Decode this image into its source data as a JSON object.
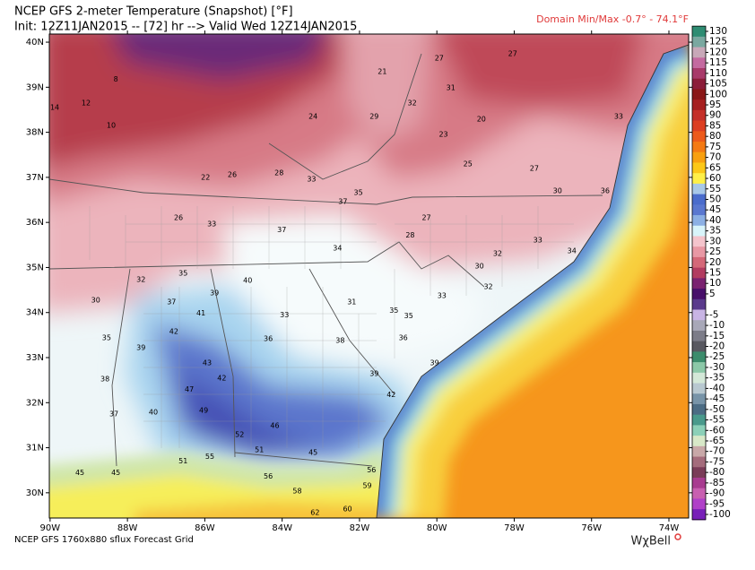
{
  "map": {
    "title": "NCEP GFS 2-meter Temperature (Snapshot) [°F]",
    "subtitle": "Init: 12Z11JAN2015 -- [72] hr --> Valid Wed 12Z14JAN2015",
    "domain_minmax": "Domain Min/Max  -0.7° -  74.1°F",
    "footer": "NCEP GFS 1760x880 sflux Forecast Grid",
    "logo": "WχBell",
    "xlim": [
      -90.02,
      -73.49
    ],
    "ylim": [
      29.44,
      40.18
    ],
    "xticks": [
      {
        "value": -90,
        "label": "90W"
      },
      {
        "value": -88,
        "label": "88W"
      },
      {
        "value": -86,
        "label": "86W"
      },
      {
        "value": -84,
        "label": "84W"
      },
      {
        "value": -82,
        "label": "82W"
      },
      {
        "value": -80,
        "label": "80W"
      },
      {
        "value": -78,
        "label": "78W"
      },
      {
        "value": -76,
        "label": "76W"
      },
      {
        "value": -74,
        "label": "74W"
      }
    ],
    "yticks": [
      {
        "value": 30,
        "label": "30N"
      },
      {
        "value": 31,
        "label": "31N"
      },
      {
        "value": 32,
        "label": "32N"
      },
      {
        "value": 33,
        "label": "33N"
      },
      {
        "value": 34,
        "label": "34N"
      },
      {
        "value": 35,
        "label": "35N"
      },
      {
        "value": 36,
        "label": "36N"
      },
      {
        "value": 37,
        "label": "37N"
      },
      {
        "value": 38,
        "label": "38N"
      },
      {
        "value": 39,
        "label": "39N"
      },
      {
        "value": 40,
        "label": "40N"
      }
    ],
    "colorbar_ticks": [
      130,
      125,
      120,
      115,
      110,
      105,
      100,
      95,
      90,
      85,
      80,
      75,
      70,
      65,
      60,
      55,
      50,
      45,
      40,
      35,
      30,
      25,
      20,
      15,
      10,
      5,
      -5,
      -10,
      -15,
      -20,
      -25,
      -30,
      -35,
      -40,
      -45,
      -50,
      -55,
      -60,
      -65,
      -70,
      -75,
      -80,
      -85,
      -90,
      -95,
      -100
    ],
    "stations": [
      {
        "lon": -89.88,
        "lat": 38.55,
        "value": 14
      },
      {
        "lon": -89.07,
        "lat": 38.65,
        "value": 12
      },
      {
        "lon": -88.3,
        "lat": 39.18,
        "value": 8
      },
      {
        "lon": -88.42,
        "lat": 38.15,
        "value": 10
      },
      {
        "lon": -85.98,
        "lat": 37.0,
        "value": 22
      },
      {
        "lon": -85.29,
        "lat": 37.06,
        "value": 26
      },
      {
        "lon": -84.08,
        "lat": 37.1,
        "value": 28
      },
      {
        "lon": -81.41,
        "lat": 39.34,
        "value": 21
      },
      {
        "lon": -79.94,
        "lat": 39.64,
        "value": 27
      },
      {
        "lon": -83.2,
        "lat": 38.35,
        "value": 24
      },
      {
        "lon": -81.62,
        "lat": 38.35,
        "value": 29
      },
      {
        "lon": -79.64,
        "lat": 38.99,
        "value": 31
      },
      {
        "lon": -80.64,
        "lat": 38.65,
        "value": 32
      },
      {
        "lon": -79.83,
        "lat": 37.95,
        "value": 23
      },
      {
        "lon": -79.2,
        "lat": 37.3,
        "value": 25
      },
      {
        "lon": -83.24,
        "lat": 36.96,
        "value": 33
      },
      {
        "lon": -82.03,
        "lat": 36.66,
        "value": 35
      },
      {
        "lon": -82.43,
        "lat": 36.46,
        "value": 37
      },
      {
        "lon": -86.68,
        "lat": 36.1,
        "value": 26
      },
      {
        "lon": -85.82,
        "lat": 35.96,
        "value": 33
      },
      {
        "lon": -84.01,
        "lat": 35.83,
        "value": 37
      },
      {
        "lon": -82.57,
        "lat": 35.43,
        "value": 34
      },
      {
        "lon": -80.27,
        "lat": 36.1,
        "value": 27
      },
      {
        "lon": -80.69,
        "lat": 35.71,
        "value": 28
      },
      {
        "lon": -78.43,
        "lat": 35.31,
        "value": 32
      },
      {
        "lon": -77.39,
        "lat": 35.61,
        "value": 33
      },
      {
        "lon": -78.9,
        "lat": 35.03,
        "value": 30
      },
      {
        "lon": -79.87,
        "lat": 34.37,
        "value": 33
      },
      {
        "lon": -78.67,
        "lat": 34.57,
        "value": 32
      },
      {
        "lon": -76.51,
        "lat": 35.37,
        "value": 34
      },
      {
        "lon": -75.65,
        "lat": 36.7,
        "value": 36
      },
      {
        "lon": -75.3,
        "lat": 38.35,
        "value": 33
      },
      {
        "lon": -87.65,
        "lat": 34.73,
        "value": 32
      },
      {
        "lon": -86.56,
        "lat": 34.87,
        "value": 35
      },
      {
        "lon": -85.75,
        "lat": 34.43,
        "value": 39
      },
      {
        "lon": -84.89,
        "lat": 34.71,
        "value": 40
      },
      {
        "lon": -86.86,
        "lat": 34.23,
        "value": 37
      },
      {
        "lon": -86.1,
        "lat": 33.98,
        "value": 41
      },
      {
        "lon": -88.82,
        "lat": 34.27,
        "value": 30
      },
      {
        "lon": -88.54,
        "lat": 33.44,
        "value": 35
      },
      {
        "lon": -87.65,
        "lat": 33.22,
        "value": 39
      },
      {
        "lon": -86.8,
        "lat": 33.58,
        "value": 42
      },
      {
        "lon": -85.94,
        "lat": 32.88,
        "value": 43
      },
      {
        "lon": -85.56,
        "lat": 32.54,
        "value": 42
      },
      {
        "lon": -86.4,
        "lat": 32.29,
        "value": 47
      },
      {
        "lon": -86.03,
        "lat": 31.83,
        "value": 49
      },
      {
        "lon": -85.1,
        "lat": 31.29,
        "value": 52
      },
      {
        "lon": -84.19,
        "lat": 31.49,
        "value": 46
      },
      {
        "lon": -84.59,
        "lat": 30.95,
        "value": 51
      },
      {
        "lon": -83.2,
        "lat": 30.89,
        "value": 45
      },
      {
        "lon": -85.87,
        "lat": 30.8,
        "value": 55
      },
      {
        "lon": -84.36,
        "lat": 30.36,
        "value": 56
      },
      {
        "lon": -83.61,
        "lat": 30.04,
        "value": 58
      },
      {
        "lon": -83.15,
        "lat": 29.56,
        "value": 62
      },
      {
        "lon": -82.31,
        "lat": 29.64,
        "value": 60
      },
      {
        "lon": -81.69,
        "lat": 30.5,
        "value": 56
      },
      {
        "lon": -81.8,
        "lat": 30.16,
        "value": 59
      },
      {
        "lon": -80.87,
        "lat": 33.44,
        "value": 36
      },
      {
        "lon": -81.62,
        "lat": 32.64,
        "value": 39
      },
      {
        "lon": -81.18,
        "lat": 32.17,
        "value": 42
      },
      {
        "lon": -82.5,
        "lat": 33.38,
        "value": 38
      },
      {
        "lon": -84.36,
        "lat": 33.42,
        "value": 36
      },
      {
        "lon": -83.94,
        "lat": 33.94,
        "value": 33
      },
      {
        "lon": -82.2,
        "lat": 34.23,
        "value": 31
      },
      {
        "lon": -80.73,
        "lat": 33.92,
        "value": 35
      },
      {
        "lon": -80.06,
        "lat": 32.88,
        "value": 39
      },
      {
        "lon": -81.11,
        "lat": 34.04,
        "value": 35
      },
      {
        "lon": -78.04,
        "lat": 39.74,
        "value": 27
      },
      {
        "lon": -78.85,
        "lat": 38.29,
        "value": 20
      },
      {
        "lon": -77.48,
        "lat": 37.2,
        "value": 27
      },
      {
        "lon": -76.88,
        "lat": 36.7,
        "value": 30
      },
      {
        "lon": -89.23,
        "lat": 30.44,
        "value": 45
      },
      {
        "lon": -86.56,
        "lat": 30.7,
        "value": 51
      },
      {
        "lon": -88.3,
        "lat": 30.44,
        "value": 45
      },
      {
        "lon": -88.58,
        "lat": 32.52,
        "value": 38
      },
      {
        "lon": -88.35,
        "lat": 31.75,
        "value": 37
      },
      {
        "lon": -87.33,
        "lat": 31.79,
        "value": 40
      }
    ]
  }
}
